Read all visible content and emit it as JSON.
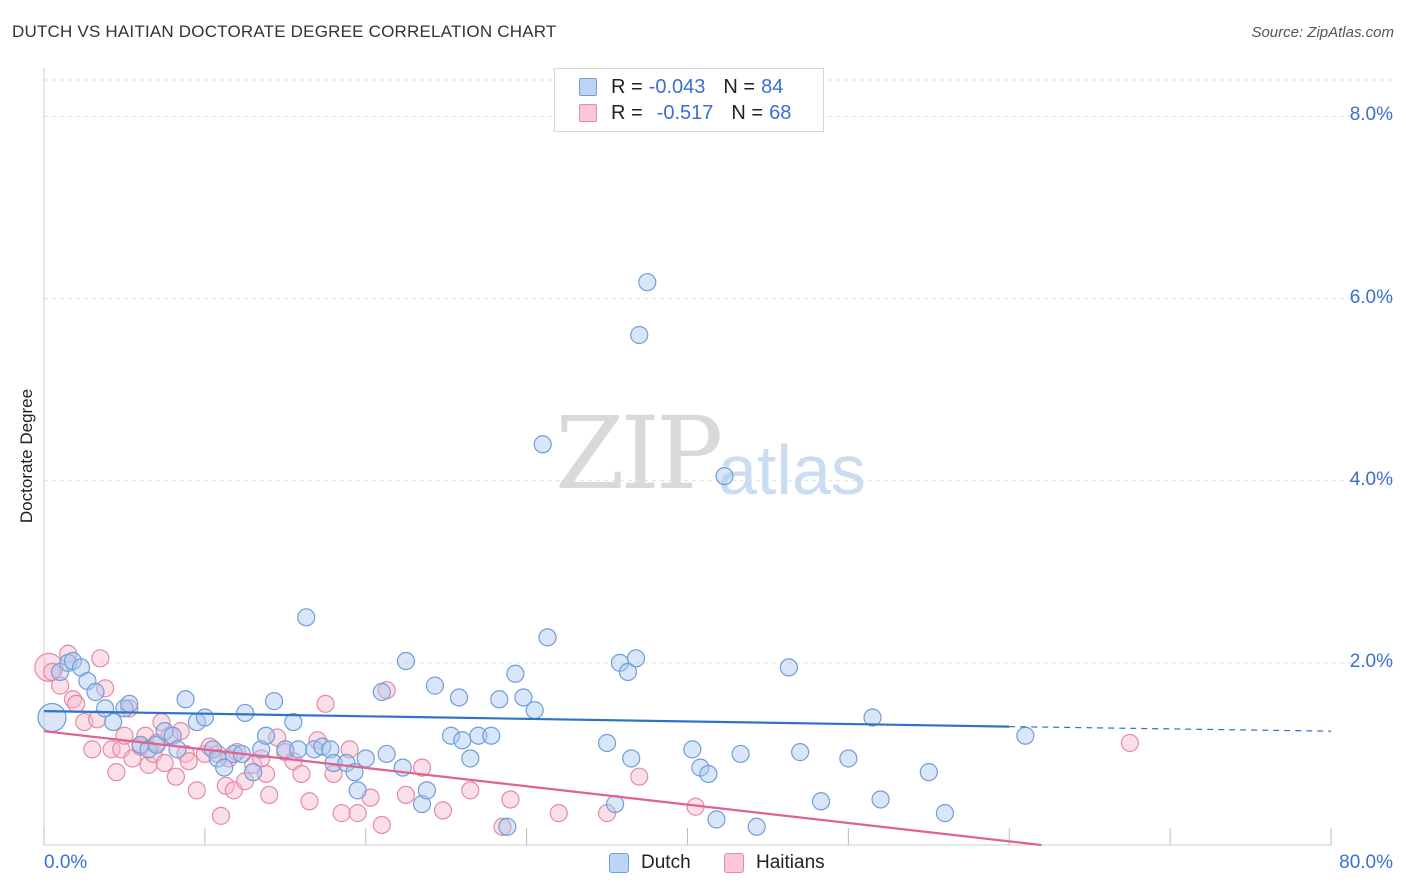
{
  "title": "DUTCH VS HAITIAN DOCTORATE DEGREE CORRELATION CHART",
  "source": "Source: ZipAtlas.com",
  "watermark": {
    "zip": "ZIP",
    "atlas": "atlas"
  },
  "colors": {
    "dutch_fill": "#a8c8f0",
    "dutch_stroke": "#6f9ed8",
    "dutch_line": "#2f73c9",
    "haitians_fill": "#f7b8cc",
    "haitians_stroke": "#e58aa8",
    "haitians_line": "#e0628f",
    "axis_text": "#3b6fd0",
    "grid": "#dddddd"
  },
  "legend": {
    "dutch": {
      "r_label": "R = ",
      "r_value": "-0.043",
      "n_label": "N = ",
      "n_value": "84"
    },
    "haitians": {
      "r_label": "R = ",
      "r_value": "-0.517",
      "n_label": "N = ",
      "n_value": "68"
    }
  },
  "bottom_legend": {
    "dutch": "Dutch",
    "haitians": "Haitians"
  },
  "chart_data": {
    "type": "scatter",
    "title": "DUTCH VS HAITIAN DOCTORATE DEGREE CORRELATION CHART",
    "xlabel": "",
    "ylabel": "Doctorate Degree",
    "xlim": [
      0,
      80
    ],
    "ylim": [
      0,
      8.4
    ],
    "x_tick_labels": [
      "0.0%",
      "80.0%"
    ],
    "y_ticks": [
      2,
      4,
      6,
      8
    ],
    "y_tick_labels": [
      "2.0%",
      "4.0%",
      "6.0%",
      "8.0%"
    ],
    "grid": true,
    "legend_position": "top-center",
    "series": [
      {
        "name": "Dutch",
        "r": -0.043,
        "n": 84,
        "trend": {
          "x0": 0,
          "y0": 1.47,
          "x1": 60,
          "y1": 1.3,
          "dashed_to_x": 80,
          "dashed_to_y": 1.25
        },
        "points": [
          [
            0.5,
            1.4
          ],
          [
            1.0,
            1.9
          ],
          [
            1.5,
            2.0
          ],
          [
            1.8,
            2.02
          ],
          [
            2.3,
            1.95
          ],
          [
            2.7,
            1.8
          ],
          [
            3.2,
            1.68
          ],
          [
            3.8,
            1.5
          ],
          [
            4.3,
            1.35
          ],
          [
            5.0,
            1.5
          ],
          [
            5.3,
            1.55
          ],
          [
            6.0,
            1.1
          ],
          [
            6.5,
            1.05
          ],
          [
            7.0,
            1.1
          ],
          [
            7.5,
            1.25
          ],
          [
            8.0,
            1.2
          ],
          [
            8.3,
            1.05
          ],
          [
            8.8,
            1.6
          ],
          [
            9.5,
            1.35
          ],
          [
            10.0,
            1.4
          ],
          [
            10.5,
            1.05
          ],
          [
            10.8,
            0.95
          ],
          [
            11.2,
            0.85
          ],
          [
            11.8,
            1.0
          ],
          [
            12.3,
            1.0
          ],
          [
            12.5,
            1.45
          ],
          [
            13.0,
            0.8
          ],
          [
            13.5,
            1.05
          ],
          [
            13.8,
            1.2
          ],
          [
            14.3,
            1.58
          ],
          [
            15.0,
            1.05
          ],
          [
            15.5,
            1.35
          ],
          [
            15.8,
            1.05
          ],
          [
            16.3,
            2.5
          ],
          [
            16.8,
            1.05
          ],
          [
            17.3,
            1.08
          ],
          [
            17.8,
            1.05
          ],
          [
            18.0,
            0.9
          ],
          [
            18.8,
            0.9
          ],
          [
            19.3,
            0.8
          ],
          [
            19.5,
            0.6
          ],
          [
            20.0,
            0.95
          ],
          [
            21.0,
            1.68
          ],
          [
            21.3,
            1.0
          ],
          [
            22.3,
            0.85
          ],
          [
            22.5,
            2.02
          ],
          [
            23.5,
            0.45
          ],
          [
            23.8,
            0.6
          ],
          [
            24.3,
            1.75
          ],
          [
            25.3,
            1.2
          ],
          [
            25.8,
            1.62
          ],
          [
            26.0,
            1.15
          ],
          [
            26.5,
            0.95
          ],
          [
            27.0,
            1.2
          ],
          [
            27.8,
            1.2
          ],
          [
            28.3,
            1.6
          ],
          [
            28.8,
            0.2
          ],
          [
            29.3,
            1.88
          ],
          [
            29.8,
            1.62
          ],
          [
            30.5,
            1.48
          ],
          [
            31.0,
            4.4
          ],
          [
            31.3,
            2.28
          ],
          [
            35.0,
            1.12
          ],
          [
            35.5,
            0.45
          ],
          [
            35.8,
            2.0
          ],
          [
            36.3,
            1.9
          ],
          [
            36.5,
            0.95
          ],
          [
            36.8,
            2.05
          ],
          [
            37.0,
            5.6
          ],
          [
            37.5,
            6.18
          ],
          [
            40.3,
            1.05
          ],
          [
            40.8,
            0.85
          ],
          [
            41.3,
            0.78
          ],
          [
            41.8,
            0.28
          ],
          [
            42.3,
            4.05
          ],
          [
            43.3,
            1.0
          ],
          [
            44.3,
            0.2
          ],
          [
            46.3,
            1.95
          ],
          [
            47.0,
            1.02
          ],
          [
            48.3,
            0.48
          ],
          [
            50.0,
            0.95
          ],
          [
            51.5,
            1.4
          ],
          [
            52.0,
            0.5
          ],
          [
            55.0,
            0.8
          ],
          [
            56.0,
            0.35
          ],
          [
            61.0,
            1.2
          ]
        ]
      },
      {
        "name": "Haitians",
        "r": -0.517,
        "n": 68,
        "trend": {
          "x0": 0,
          "y0": 1.25,
          "x1": 62,
          "y1": 0.0
        },
        "points": [
          [
            0.3,
            1.95
          ],
          [
            0.5,
            1.9
          ],
          [
            1.0,
            1.75
          ],
          [
            1.5,
            2.1
          ],
          [
            1.8,
            1.6
          ],
          [
            2.0,
            1.55
          ],
          [
            2.5,
            1.35
          ],
          [
            3.0,
            1.05
          ],
          [
            3.3,
            1.38
          ],
          [
            3.5,
            2.05
          ],
          [
            3.8,
            1.72
          ],
          [
            4.2,
            1.05
          ],
          [
            4.5,
            0.8
          ],
          [
            4.8,
            1.05
          ],
          [
            5.0,
            1.2
          ],
          [
            5.3,
            1.5
          ],
          [
            5.5,
            0.95
          ],
          [
            6.0,
            1.08
          ],
          [
            6.3,
            1.2
          ],
          [
            6.5,
            0.88
          ],
          [
            6.8,
            1.0
          ],
          [
            7.0,
            1.12
          ],
          [
            7.3,
            1.35
          ],
          [
            7.5,
            0.9
          ],
          [
            7.8,
            1.2
          ],
          [
            8.2,
            0.75
          ],
          [
            8.5,
            1.25
          ],
          [
            8.8,
            1.0
          ],
          [
            9.0,
            0.92
          ],
          [
            9.5,
            0.6
          ],
          [
            10.0,
            1.0
          ],
          [
            10.3,
            1.08
          ],
          [
            10.8,
            1.0
          ],
          [
            11.0,
            0.32
          ],
          [
            11.3,
            0.65
          ],
          [
            11.5,
            0.95
          ],
          [
            11.8,
            0.6
          ],
          [
            12.0,
            1.02
          ],
          [
            12.5,
            0.7
          ],
          [
            13.0,
            0.88
          ],
          [
            13.5,
            0.95
          ],
          [
            13.8,
            0.78
          ],
          [
            14.0,
            0.55
          ],
          [
            14.5,
            1.18
          ],
          [
            15.0,
            1.02
          ],
          [
            15.5,
            0.92
          ],
          [
            16.0,
            0.78
          ],
          [
            16.5,
            0.48
          ],
          [
            17.0,
            1.15
          ],
          [
            17.5,
            1.55
          ],
          [
            18.0,
            0.78
          ],
          [
            18.5,
            0.35
          ],
          [
            19.0,
            1.05
          ],
          [
            19.5,
            0.35
          ],
          [
            20.3,
            0.52
          ],
          [
            21.0,
            0.22
          ],
          [
            21.3,
            1.7
          ],
          [
            22.5,
            0.55
          ],
          [
            23.5,
            0.85
          ],
          [
            24.8,
            0.38
          ],
          [
            26.5,
            0.6
          ],
          [
            28.5,
            0.2
          ],
          [
            29.0,
            0.5
          ],
          [
            32.0,
            0.35
          ],
          [
            35.0,
            0.35
          ],
          [
            37.0,
            0.75
          ],
          [
            40.5,
            0.42
          ],
          [
            67.5,
            1.12
          ]
        ]
      }
    ]
  }
}
